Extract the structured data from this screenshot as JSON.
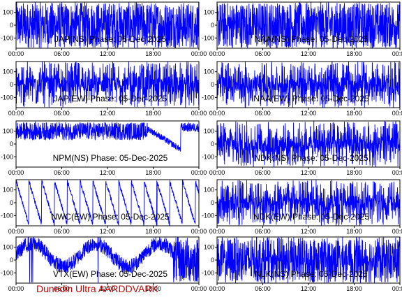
{
  "footer": {
    "credit": "Dunedin Ultra AARDDVARK"
  },
  "chart_data": {
    "type": "line",
    "colors": {
      "trace": "#0000ff",
      "axes": "#000000",
      "credit": "#cc0000"
    },
    "shared_axes": {
      "x_ticks": [
        "00:00",
        "06:00",
        "12:00",
        "18:00",
        "00:00"
      ],
      "x_range_hours": [
        0,
        24
      ],
      "y_ticks": [
        100,
        0,
        -100
      ],
      "ylim": [
        -180,
        180
      ]
    },
    "panels": [
      {
        "id": "jap-ns",
        "title": "JAP(NS) Phase: 05-Dec-2025",
        "pattern": "dense"
      },
      {
        "id": "naa-ns",
        "title": "NAA(NS) Phase: 05-Dec-2025",
        "pattern": "dense"
      },
      {
        "id": "jap-ew",
        "title": "JAP(EW) Phase: 05-Dec-2025",
        "pattern": "noisy"
      },
      {
        "id": "naa-ew",
        "title": "NAA(EW) Phase: 05-Dec-2025",
        "pattern": "noisy"
      },
      {
        "id": "npm-ns",
        "title": "NPM(NS) Phase: 05-Dec-2025",
        "pattern": "npm"
      },
      {
        "id": "ndk-ns",
        "title": "NDK(NS) Phase: 05-Dec-2025",
        "pattern": "noisy"
      },
      {
        "id": "nwc-ew",
        "title": "NWC(EW) Phase: 05-Dec-2025",
        "pattern": "sawtooth"
      },
      {
        "id": "ndk-ew",
        "title": "NDK(EW) Phase: 05-Dec-2025",
        "pattern": "noisy"
      },
      {
        "id": "vtx-ew",
        "title": "VTX(EW) Phase: 05-Dec-2025",
        "pattern": "vtx"
      },
      {
        "id": "nlk-ns",
        "title": "NLK(NS) Phase: 05-Dec-2025",
        "pattern": "nlk"
      }
    ]
  }
}
